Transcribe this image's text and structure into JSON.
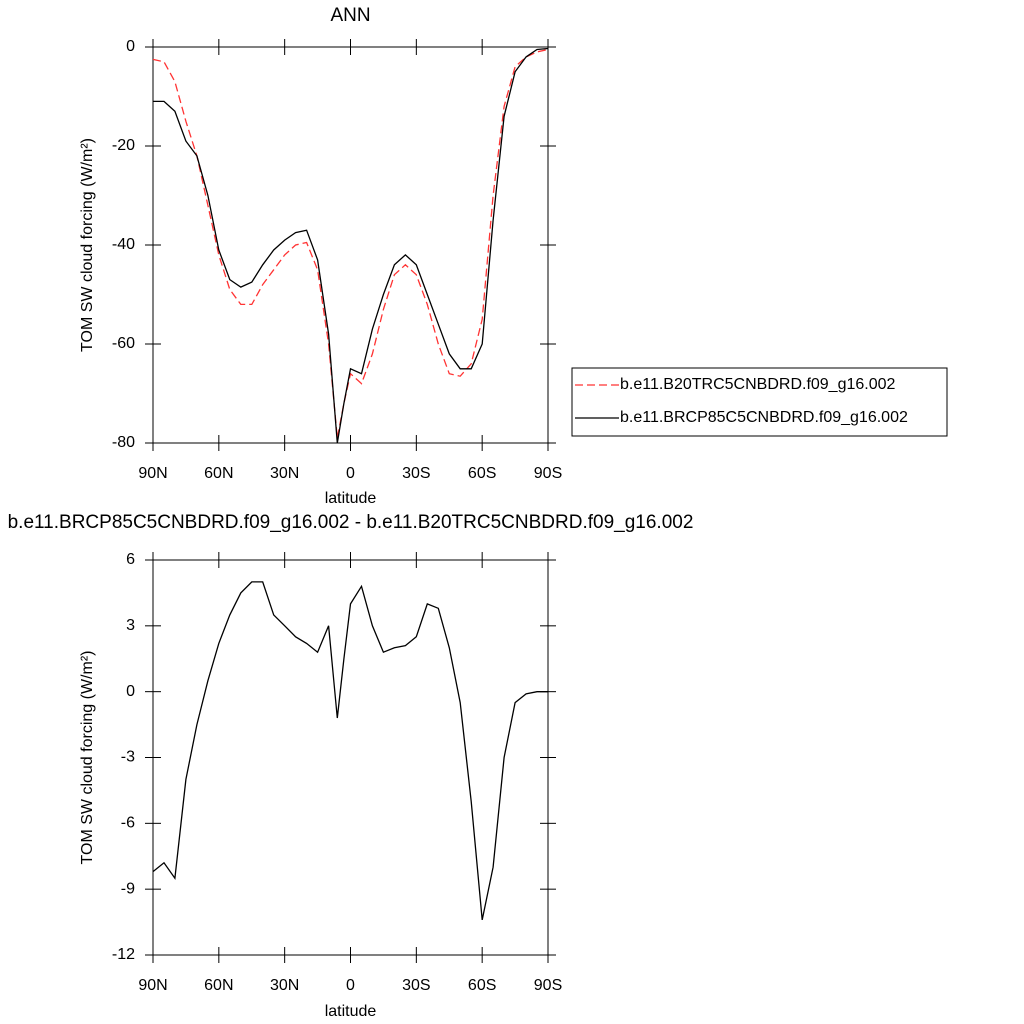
{
  "chart_data": [
    {
      "type": "line",
      "title": "ANN",
      "xlabel": "latitude",
      "ylabel": "TOM SW cloud forcing (W/m²)",
      "x": [
        90,
        85,
        80,
        75,
        70,
        65,
        60,
        55,
        50,
        45,
        40,
        35,
        30,
        25,
        20,
        15,
        10,
        6,
        3,
        0,
        -5,
        -10,
        -15,
        -20,
        -25,
        -30,
        -35,
        -40,
        -45,
        -50,
        -55,
        -60,
        -65,
        -70,
        -75,
        -80,
        -85,
        -90
      ],
      "series": [
        {
          "name": "b.e11.B20TRC5CNBDRD.f09_g16.002",
          "color": "#ff3333",
          "line_style": "dashed",
          "values": [
            -2.5,
            -3,
            -7,
            -15,
            -22,
            -32,
            -42,
            -49,
            -52,
            -52,
            -48,
            -45,
            -42,
            -40,
            -39.5,
            -45,
            -60,
            -79,
            -72,
            -66,
            -68,
            -62,
            -53,
            -46,
            -44,
            -46,
            -52,
            -60,
            -66,
            -66.5,
            -64,
            -55,
            -30,
            -12,
            -4,
            -2,
            -1,
            -0.5
          ]
        },
        {
          "name": "b.e11.BRCP85C5CNBDRD.f09_g16.002",
          "color": "#000000",
          "line_style": "solid",
          "values": [
            -11,
            -11,
            -13,
            -19,
            -22,
            -30,
            -41,
            -47,
            -48.5,
            -47.5,
            -44,
            -41,
            -39,
            -37.5,
            -37,
            -43,
            -58,
            -80,
            -72,
            -65,
            -66,
            -57,
            -50,
            -44,
            -42,
            -44,
            -50,
            -56,
            -62,
            -65,
            -65,
            -60,
            -35,
            -14,
            -5,
            -2,
            -0.5,
            -0.3
          ]
        }
      ],
      "xlim": [
        90,
        -90
      ],
      "xticks": [
        {
          "value": 90,
          "label": "90N"
        },
        {
          "value": 60,
          "label": "60N"
        },
        {
          "value": 30,
          "label": "30N"
        },
        0,
        {
          "value": -30,
          "label": "30S"
        },
        {
          "value": -60,
          "label": "60S"
        },
        {
          "value": -90,
          "label": "90S"
        }
      ],
      "ylim": [
        -80,
        0
      ],
      "yticks": [
        0,
        -20,
        -40,
        -60,
        -80
      ],
      "legend": "right"
    },
    {
      "type": "line",
      "title": "b.e11.BRCP85C5CNBDRD.f09_g16.002 - b.e11.B20TRC5CNBDRD.f09_g16.002",
      "xlabel": "latitude",
      "ylabel": "TOM SW cloud forcing (W/m²)",
      "x": [
        90,
        85,
        80,
        75,
        70,
        65,
        60,
        55,
        50,
        45,
        40,
        35,
        30,
        25,
        20,
        15,
        10,
        6,
        3,
        0,
        -5,
        -10,
        -15,
        -20,
        -25,
        -30,
        -35,
        -40,
        -45,
        -50,
        -55,
        -60,
        -65,
        -70,
        -75,
        -80,
        -85,
        -90
      ],
      "series": [
        {
          "name": "b.e11.BRCP85C5CNBDRD.f09_g16.002 - b.e11.B20TRC5CNBDRD.f09_g16.002",
          "color": "#000000",
          "line_style": "solid",
          "values": [
            -8.2,
            -7.8,
            -8.5,
            -4,
            -1.5,
            0.5,
            2.2,
            3.5,
            4.5,
            5,
            5,
            3.5,
            3,
            2.5,
            2.2,
            1.8,
            3,
            -1.2,
            1.5,
            4,
            4.8,
            3,
            1.8,
            2,
            2.1,
            2.5,
            4,
            3.8,
            2,
            -0.5,
            -5,
            -10.4,
            -8,
            -3,
            -0.5,
            -0.1,
            0,
            0
          ]
        }
      ],
      "xlim": [
        90,
        -90
      ],
      "xticks": [
        {
          "value": 90,
          "label": "90N"
        },
        {
          "value": 60,
          "label": "60N"
        },
        {
          "value": 30,
          "label": "30N"
        },
        0,
        {
          "value": -30,
          "label": "30S"
        },
        {
          "value": -60,
          "label": "60S"
        },
        {
          "value": -90,
          "label": "90S"
        }
      ],
      "ylim": [
        -12,
        6
      ],
      "yticks": [
        6,
        3,
        0,
        -3,
        -6,
        -9,
        -12
      ]
    }
  ]
}
